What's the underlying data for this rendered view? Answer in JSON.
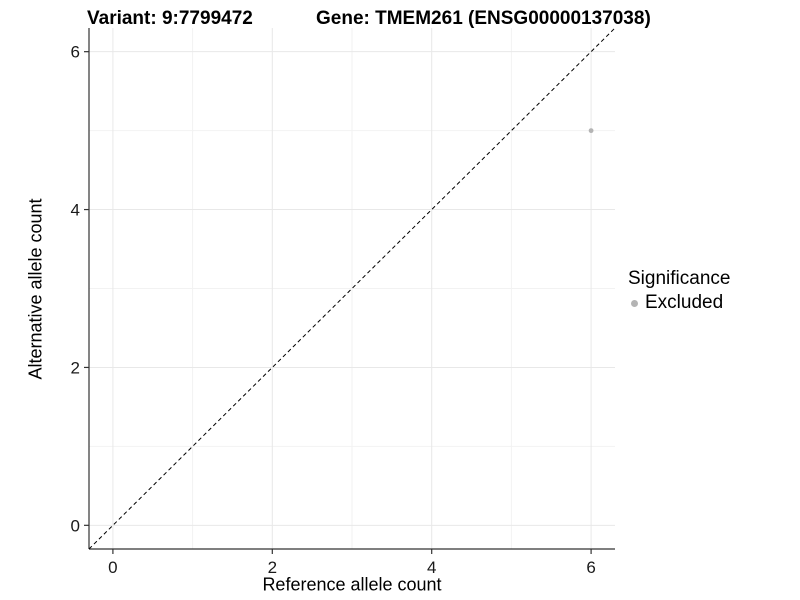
{
  "figure": {
    "title_variant": "Variant: 9:7799472",
    "title_gene": "Gene: TMEM261 (ENSG00000137038)"
  },
  "chart_data": {
    "type": "scatter",
    "title": "Variant: 9:7799472 | Gene: TMEM261 (ENSG00000137038)",
    "xlabel": "Reference allele count",
    "ylabel": "Alternative allele count",
    "xlim": [
      -0.3,
      6.3
    ],
    "ylim": [
      -0.3,
      6.3
    ],
    "x_ticks": [
      0,
      2,
      4,
      6
    ],
    "y_ticks": [
      0,
      2,
      4,
      6
    ],
    "x_minor_ticks": [
      1,
      3,
      5
    ],
    "y_minor_ticks": [
      1,
      3,
      5
    ],
    "grid": true,
    "series": [
      {
        "name": "Excluded",
        "color": "#b4b4b4",
        "points": [
          {
            "x": 6,
            "y": 5
          }
        ]
      }
    ],
    "reference_line": {
      "kind": "identity y=x",
      "style": "dashed",
      "color": "#000000",
      "from": [
        -0.3,
        -0.3
      ],
      "to": [
        6.3,
        6.3
      ]
    },
    "legend": {
      "title": "Significance",
      "position": "right",
      "items": [
        {
          "label": "Excluded",
          "marker": "circle",
          "color": "#b4b4b4"
        }
      ]
    },
    "style": {
      "axis_color": "#333333",
      "major_grid_color": "#e8e8e8",
      "minor_grid_color": "#f2f2f2",
      "tick_color": "#333333",
      "point_color": "#b4b4b4",
      "background": "#ffffff"
    }
  }
}
